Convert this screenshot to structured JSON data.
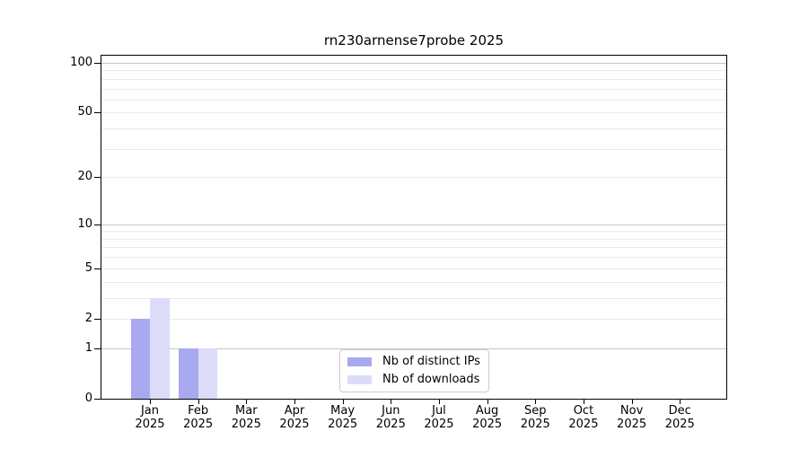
{
  "title": "rn230arnense7probe 2025",
  "chart_data": {
    "type": "bar",
    "title": "rn230arnense7probe 2025",
    "categories": [
      {
        "month": "Jan",
        "year": "2025"
      },
      {
        "month": "Feb",
        "year": "2025"
      },
      {
        "month": "Mar",
        "year": "2025"
      },
      {
        "month": "Apr",
        "year": "2025"
      },
      {
        "month": "May",
        "year": "2025"
      },
      {
        "month": "Jun",
        "year": "2025"
      },
      {
        "month": "Jul",
        "year": "2025"
      },
      {
        "month": "Aug",
        "year": "2025"
      },
      {
        "month": "Sep",
        "year": "2025"
      },
      {
        "month": "Oct",
        "year": "2025"
      },
      {
        "month": "Nov",
        "year": "2025"
      },
      {
        "month": "Dec",
        "year": "2025"
      }
    ],
    "series": [
      {
        "name": "Nb of distinct IPs",
        "color": "#a9a9f1",
        "values": [
          2,
          1,
          0,
          0,
          0,
          0,
          0,
          0,
          0,
          0,
          0,
          0
        ]
      },
      {
        "name": "Nb of downloads",
        "color": "#dcdcf8",
        "values": [
          3,
          1,
          0,
          0,
          0,
          0,
          0,
          0,
          0,
          0,
          0,
          0
        ]
      }
    ],
    "yscale": "log1p",
    "ylim": [
      0,
      112
    ],
    "yticks": [
      0,
      1,
      2,
      5,
      10,
      20,
      50,
      100
    ],
    "yticks_minor": [
      3,
      4,
      6,
      7,
      8,
      9,
      30,
      40,
      60,
      70,
      80,
      90
    ],
    "grid_strong_at": [
      1,
      10,
      100
    ],
    "grid": true,
    "legend_position": "lower center",
    "xlabel": "",
    "ylabel": ""
  },
  "colors": {
    "background": "#ffffff",
    "spine": "#000000",
    "grid_light": "#eaeaea",
    "grid_strong": "#c6c6c6",
    "legend_border": "#cccccc"
  }
}
